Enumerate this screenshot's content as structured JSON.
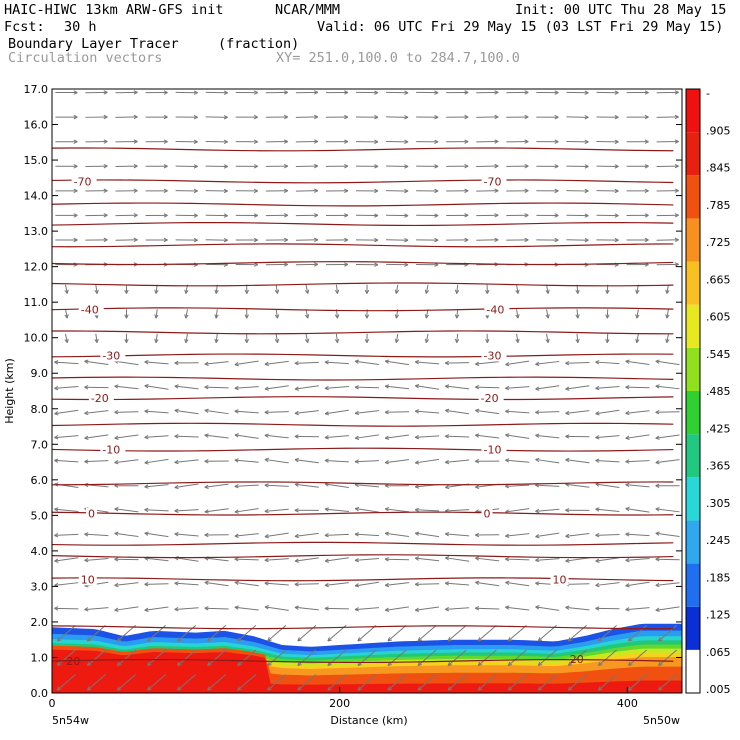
{
  "header": {
    "model": "HAIC-HIWC 13km ARW-GFS init",
    "org": "NCAR/MMM",
    "init": "Init: 00 UTC Thu 28 May 15",
    "fcst_label": "Fcst:",
    "fcst_value": "30 h",
    "valid": "Valid: 06 UTC Fri 29 May 15 (03 LST Fri 29 May 15)",
    "field": "Boundary Layer Tracer",
    "units": "(fraction)",
    "overlay": "Circulation vectors",
    "xy": "XY= 251.0,100.0 to 284.7,100.0"
  },
  "colors": {
    "contour": "#8b1a1a",
    "vector": "#777777",
    "colorbar": [
      "#ffffff",
      "#0a2fd6",
      "#1f6ff0",
      "#2fa8f0",
      "#28d8d8",
      "#20c880",
      "#30d030",
      "#90e020",
      "#e8e820",
      "#f8c020",
      "#f89020",
      "#f05010",
      "#e82010",
      "#f01010"
    ]
  },
  "chart_data": {
    "type": "heatmap",
    "ylabel": "Height (km)",
    "xlabel": "Distance (km)",
    "ylim": [
      0.0,
      17.0
    ],
    "xlim": [
      0,
      438
    ],
    "y_ticks": [
      "0.0",
      "1.0",
      "2.0",
      "3.0",
      "4.0",
      "5.0",
      "6.0",
      "7.0",
      "8.0",
      "9.0",
      "10.0",
      "11.0",
      "12.0",
      "13.0",
      "14.0",
      "15.0",
      "16.0",
      "17.0"
    ],
    "x_ticks": [
      {
        "value": 0,
        "label": "0"
      },
      {
        "value": 200,
        "label": "200"
      },
      {
        "value": 400,
        "label": "400"
      }
    ],
    "x_endpoints": {
      "left": "5n54w",
      "right": "5n50w"
    },
    "colorbar_labels": [
      ".005",
      ".065",
      ".125",
      ".185",
      ".245",
      ".305",
      ".365",
      ".425",
      ".485",
      ".545",
      ".605",
      ".665",
      ".725",
      ".785",
      ".845",
      ".905",
      "-"
    ],
    "temperature_contours": [
      {
        "label": "20",
        "height": 0.9
      },
      {
        "label": "10",
        "height": 3.2
      },
      {
        "label": "0",
        "height": 5.05
      },
      {
        "label": "-10",
        "height": 6.85
      },
      {
        "label": "-20",
        "height": 8.3
      },
      {
        "label": "-30",
        "height": 9.5
      },
      {
        "label": "-40",
        "height": 10.8
      },
      {
        "label": "-70",
        "height": 14.4
      }
    ],
    "inline_labels": [
      {
        "text": "20",
        "x": 10,
        "y": 0.9
      },
      {
        "text": "20",
        "x": 360,
        "y": 0.95
      },
      {
        "text": "10",
        "x": 20,
        "y": 3.2
      },
      {
        "text": "10",
        "x": 348,
        "y": 3.2
      },
      {
        "text": "0",
        "x": 25,
        "y": 5.05
      },
      {
        "text": "0",
        "x": 300,
        "y": 5.05
      },
      {
        "text": "-10",
        "x": 35,
        "y": 6.85
      },
      {
        "text": "-10",
        "x": 300,
        "y": 6.85
      },
      {
        "text": "-20",
        "x": 27,
        "y": 8.3
      },
      {
        "text": "-20",
        "x": 298,
        "y": 8.3
      },
      {
        "text": "-30",
        "x": 35,
        "y": 9.5
      },
      {
        "text": "-30",
        "x": 300,
        "y": 9.5
      },
      {
        "text": "-40",
        "x": 20,
        "y": 10.8
      },
      {
        "text": "-40",
        "x": 302,
        "y": 10.8
      },
      {
        "text": "-70",
        "x": 15,
        "y": 14.4
      },
      {
        "text": "-70",
        "x": 300,
        "y": 14.4
      }
    ],
    "other_contour_heights": [
      1.85,
      3.85,
      4.2,
      5.9,
      7.55,
      8.85,
      10.15,
      11.5,
      12.1,
      12.6,
      13.2,
      13.75,
      15.3
    ],
    "tracer_top_km": [
      [
        0,
        1.85
      ],
      [
        30,
        1.8
      ],
      [
        50,
        1.6
      ],
      [
        70,
        1.75
      ],
      [
        100,
        1.7
      ],
      [
        120,
        1.75
      ],
      [
        140,
        1.6
      ],
      [
        160,
        1.35
      ],
      [
        180,
        1.3
      ],
      [
        200,
        1.35
      ],
      [
        240,
        1.45
      ],
      [
        280,
        1.5
      ],
      [
        320,
        1.5
      ],
      [
        350,
        1.45
      ],
      [
        370,
        1.6
      ],
      [
        390,
        1.8
      ],
      [
        410,
        1.95
      ],
      [
        438,
        1.95
      ]
    ],
    "vector_columns": 21,
    "vector_rows": 25
  }
}
